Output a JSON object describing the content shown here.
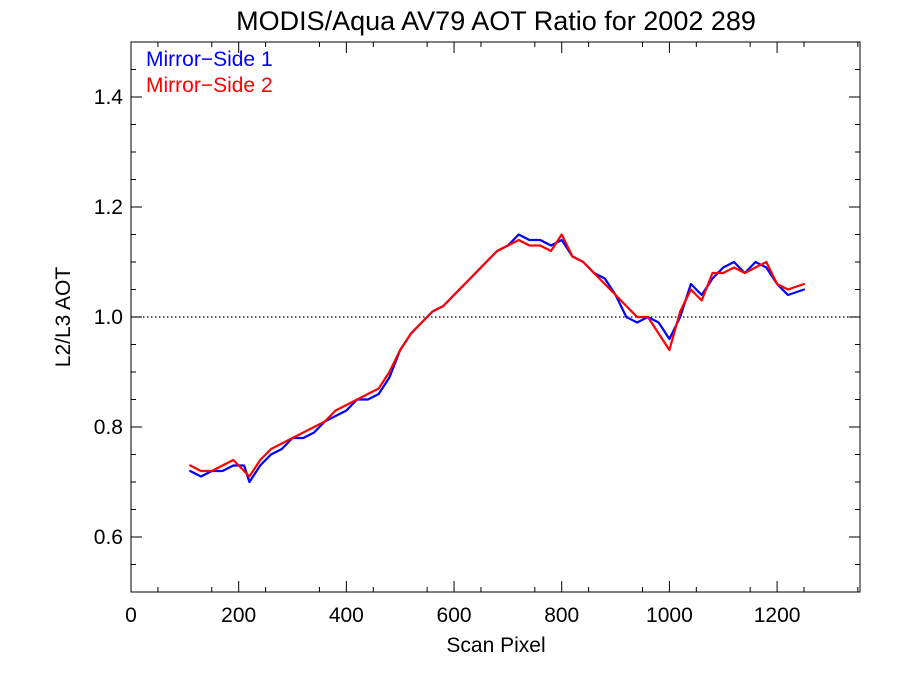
{
  "chart_data": {
    "type": "line",
    "title": "MODIS/Aqua AV79 AOT Ratio for 2002 289",
    "xlabel": "Scan Pixel",
    "ylabel": "L2/L3 AOT",
    "xlim": [
      0,
      1354
    ],
    "ylim": [
      0.5,
      1.5
    ],
    "x_ticks": [
      0,
      200,
      400,
      600,
      800,
      1000,
      1200
    ],
    "x_tick_labels": [
      "0",
      "200",
      "400",
      "600",
      "800",
      "1000",
      "1200"
    ],
    "y_ticks": [
      0.6,
      0.8,
      1.0,
      1.2,
      1.4
    ],
    "y_tick_labels": [
      "0.6",
      "0.8",
      "1.0",
      "1.2",
      "1.4"
    ],
    "reference_line": {
      "y": 1.0,
      "style": "dotted",
      "color": "#000000"
    },
    "legend_position": "top-left",
    "grid": false,
    "x": [
      110,
      130,
      150,
      170,
      190,
      210,
      220,
      240,
      260,
      280,
      300,
      320,
      340,
      360,
      380,
      400,
      420,
      440,
      460,
      480,
      500,
      520,
      540,
      560,
      580,
      600,
      620,
      640,
      660,
      680,
      700,
      720,
      740,
      760,
      780,
      800,
      820,
      840,
      860,
      880,
      900,
      920,
      940,
      960,
      980,
      1000,
      1020,
      1040,
      1060,
      1080,
      1100,
      1120,
      1140,
      1160,
      1180,
      1200,
      1220,
      1250
    ],
    "series": [
      {
        "name": "Mirror−Side 1",
        "color": "#0000ff",
        "values": [
          0.72,
          0.71,
          0.72,
          0.72,
          0.73,
          0.73,
          0.7,
          0.73,
          0.75,
          0.76,
          0.78,
          0.78,
          0.79,
          0.81,
          0.82,
          0.83,
          0.85,
          0.85,
          0.86,
          0.89,
          0.94,
          0.97,
          0.99,
          1.01,
          1.02,
          1.04,
          1.06,
          1.08,
          1.1,
          1.12,
          1.13,
          1.15,
          1.14,
          1.14,
          1.13,
          1.14,
          1.11,
          1.1,
          1.08,
          1.07,
          1.04,
          1.0,
          0.99,
          1.0,
          0.99,
          0.96,
          1.0,
          1.06,
          1.04,
          1.07,
          1.09,
          1.1,
          1.08,
          1.1,
          1.09,
          1.06,
          1.04,
          1.05
        ]
      },
      {
        "name": "Mirror−Side 2",
        "color": "#ff0000",
        "values": [
          0.73,
          0.72,
          0.72,
          0.73,
          0.74,
          0.72,
          0.71,
          0.74,
          0.76,
          0.77,
          0.78,
          0.79,
          0.8,
          0.81,
          0.83,
          0.84,
          0.85,
          0.86,
          0.87,
          0.9,
          0.94,
          0.97,
          0.99,
          1.01,
          1.02,
          1.04,
          1.06,
          1.08,
          1.1,
          1.12,
          1.13,
          1.14,
          1.13,
          1.13,
          1.12,
          1.15,
          1.11,
          1.1,
          1.08,
          1.06,
          1.04,
          1.02,
          1.0,
          1.0,
          0.97,
          0.94,
          1.01,
          1.05,
          1.03,
          1.08,
          1.08,
          1.09,
          1.08,
          1.09,
          1.1,
          1.06,
          1.05,
          1.06
        ]
      }
    ]
  }
}
